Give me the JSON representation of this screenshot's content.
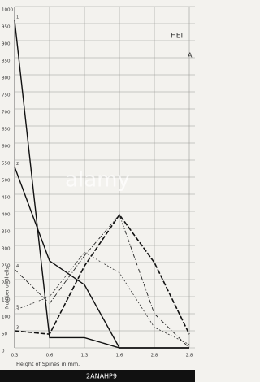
{
  "chart_data": {
    "type": "line",
    "title": "HEI",
    "subtitle": "A",
    "xlabel": "Height of Spines in mm.",
    "ylabel": "Number of Shells.",
    "categories": [
      "0.3",
      "0.6",
      "1.3",
      "1.6",
      "2.8",
      "2.8"
    ],
    "ylim": [
      0,
      1000
    ],
    "yticks": [
      0,
      50,
      100,
      150,
      200,
      250,
      300,
      350,
      400,
      450,
      500,
      550,
      600,
      650,
      700,
      750,
      800,
      850,
      900,
      950,
      1000
    ],
    "grid": true,
    "series": [
      {
        "name": "1",
        "color": "#111111",
        "style": "solid",
        "values": [
          960,
          30,
          30,
          0,
          0,
          0
        ]
      },
      {
        "name": "2",
        "color": "#111111",
        "style": "solid",
        "values": [
          530,
          255,
          185,
          0,
          0,
          0
        ]
      },
      {
        "name": "3",
        "color": "#111111",
        "style": "dashed",
        "values": [
          50,
          40,
          240,
          390,
          250,
          40
        ]
      },
      {
        "name": "4",
        "color": "#222222",
        "style": "dash-dot",
        "values": [
          230,
          130,
          270,
          390,
          100,
          0
        ]
      },
      {
        "name": "5",
        "color": "#333333",
        "style": "dotted",
        "values": [
          110,
          150,
          280,
          220,
          60,
          10
        ]
      }
    ],
    "watermark": "alamy",
    "image_id": "2ANAHP9"
  }
}
